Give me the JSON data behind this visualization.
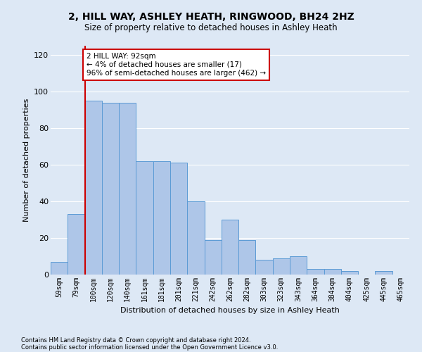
{
  "title": "2, HILL WAY, ASHLEY HEATH, RINGWOOD, BH24 2HZ",
  "subtitle": "Size of property relative to detached houses in Ashley Heath",
  "xlabel": "Distribution of detached houses by size in Ashley Heath",
  "ylabel": "Number of detached properties",
  "footnote1": "Contains HM Land Registry data © Crown copyright and database right 2024.",
  "footnote2": "Contains public sector information licensed under the Open Government Licence v3.0.",
  "bar_labels": [
    "59sqm",
    "79sqm",
    "100sqm",
    "120sqm",
    "140sqm",
    "161sqm",
    "181sqm",
    "201sqm",
    "221sqm",
    "242sqm",
    "262sqm",
    "282sqm",
    "303sqm",
    "323sqm",
    "343sqm",
    "364sqm",
    "384sqm",
    "404sqm",
    "425sqm",
    "445sqm",
    "465sqm"
  ],
  "bar_values": [
    7,
    33,
    95,
    94,
    94,
    62,
    62,
    61,
    40,
    19,
    30,
    19,
    8,
    9,
    10,
    3,
    3,
    2,
    0,
    2,
    0
  ],
  "bar_color": "#aec6e8",
  "bar_edgecolor": "#5b9bd5",
  "annotation_text": "2 HILL WAY: 92sqm\n← 4% of detached houses are smaller (17)\n96% of semi-detached houses are larger (462) →",
  "annotation_box_color": "#ffffff",
  "annotation_box_edgecolor": "#cc0000",
  "vline_color": "#cc0000",
  "ylim": [
    0,
    125
  ],
  "yticks": [
    0,
    20,
    40,
    60,
    80,
    100,
    120
  ],
  "background_color": "#dde8f5",
  "axes_background": "#dde8f5",
  "grid_color": "#ffffff",
  "title_fontsize": 10,
  "subtitle_fontsize": 8.5,
  "ylabel_fontsize": 8,
  "xlabel_fontsize": 8,
  "tick_fontsize": 7,
  "footnote_fontsize": 6
}
